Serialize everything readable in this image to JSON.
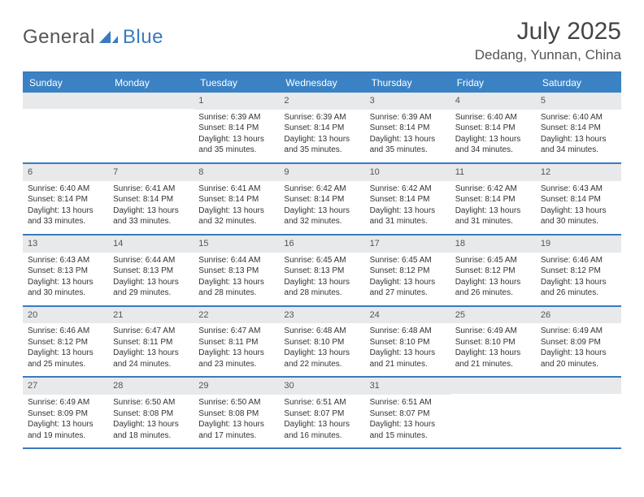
{
  "logo": {
    "text1": "General",
    "text2": "Blue"
  },
  "title": "July 2025",
  "location": "Dedang, Yunnan, China",
  "colors": {
    "header_bar": "#3b82c4",
    "accent_border": "#3a7bbf",
    "daynum_bg": "#e7e9eb",
    "text": "#333333",
    "muted": "#555555",
    "white": "#ffffff"
  },
  "weekdays": [
    "Sunday",
    "Monday",
    "Tuesday",
    "Wednesday",
    "Thursday",
    "Friday",
    "Saturday"
  ],
  "weeks": [
    [
      {
        "day": "",
        "sunrise": "",
        "sunset": "",
        "daylight": ""
      },
      {
        "day": "",
        "sunrise": "",
        "sunset": "",
        "daylight": ""
      },
      {
        "day": "1",
        "sunrise": "Sunrise: 6:39 AM",
        "sunset": "Sunset: 8:14 PM",
        "daylight": "Daylight: 13 hours and 35 minutes."
      },
      {
        "day": "2",
        "sunrise": "Sunrise: 6:39 AM",
        "sunset": "Sunset: 8:14 PM",
        "daylight": "Daylight: 13 hours and 35 minutes."
      },
      {
        "day": "3",
        "sunrise": "Sunrise: 6:39 AM",
        "sunset": "Sunset: 8:14 PM",
        "daylight": "Daylight: 13 hours and 35 minutes."
      },
      {
        "day": "4",
        "sunrise": "Sunrise: 6:40 AM",
        "sunset": "Sunset: 8:14 PM",
        "daylight": "Daylight: 13 hours and 34 minutes."
      },
      {
        "day": "5",
        "sunrise": "Sunrise: 6:40 AM",
        "sunset": "Sunset: 8:14 PM",
        "daylight": "Daylight: 13 hours and 34 minutes."
      }
    ],
    [
      {
        "day": "6",
        "sunrise": "Sunrise: 6:40 AM",
        "sunset": "Sunset: 8:14 PM",
        "daylight": "Daylight: 13 hours and 33 minutes."
      },
      {
        "day": "7",
        "sunrise": "Sunrise: 6:41 AM",
        "sunset": "Sunset: 8:14 PM",
        "daylight": "Daylight: 13 hours and 33 minutes."
      },
      {
        "day": "8",
        "sunrise": "Sunrise: 6:41 AM",
        "sunset": "Sunset: 8:14 PM",
        "daylight": "Daylight: 13 hours and 32 minutes."
      },
      {
        "day": "9",
        "sunrise": "Sunrise: 6:42 AM",
        "sunset": "Sunset: 8:14 PM",
        "daylight": "Daylight: 13 hours and 32 minutes."
      },
      {
        "day": "10",
        "sunrise": "Sunrise: 6:42 AM",
        "sunset": "Sunset: 8:14 PM",
        "daylight": "Daylight: 13 hours and 31 minutes."
      },
      {
        "day": "11",
        "sunrise": "Sunrise: 6:42 AM",
        "sunset": "Sunset: 8:14 PM",
        "daylight": "Daylight: 13 hours and 31 minutes."
      },
      {
        "day": "12",
        "sunrise": "Sunrise: 6:43 AM",
        "sunset": "Sunset: 8:14 PM",
        "daylight": "Daylight: 13 hours and 30 minutes."
      }
    ],
    [
      {
        "day": "13",
        "sunrise": "Sunrise: 6:43 AM",
        "sunset": "Sunset: 8:13 PM",
        "daylight": "Daylight: 13 hours and 30 minutes."
      },
      {
        "day": "14",
        "sunrise": "Sunrise: 6:44 AM",
        "sunset": "Sunset: 8:13 PM",
        "daylight": "Daylight: 13 hours and 29 minutes."
      },
      {
        "day": "15",
        "sunrise": "Sunrise: 6:44 AM",
        "sunset": "Sunset: 8:13 PM",
        "daylight": "Daylight: 13 hours and 28 minutes."
      },
      {
        "day": "16",
        "sunrise": "Sunrise: 6:45 AM",
        "sunset": "Sunset: 8:13 PM",
        "daylight": "Daylight: 13 hours and 28 minutes."
      },
      {
        "day": "17",
        "sunrise": "Sunrise: 6:45 AM",
        "sunset": "Sunset: 8:12 PM",
        "daylight": "Daylight: 13 hours and 27 minutes."
      },
      {
        "day": "18",
        "sunrise": "Sunrise: 6:45 AM",
        "sunset": "Sunset: 8:12 PM",
        "daylight": "Daylight: 13 hours and 26 minutes."
      },
      {
        "day": "19",
        "sunrise": "Sunrise: 6:46 AM",
        "sunset": "Sunset: 8:12 PM",
        "daylight": "Daylight: 13 hours and 26 minutes."
      }
    ],
    [
      {
        "day": "20",
        "sunrise": "Sunrise: 6:46 AM",
        "sunset": "Sunset: 8:12 PM",
        "daylight": "Daylight: 13 hours and 25 minutes."
      },
      {
        "day": "21",
        "sunrise": "Sunrise: 6:47 AM",
        "sunset": "Sunset: 8:11 PM",
        "daylight": "Daylight: 13 hours and 24 minutes."
      },
      {
        "day": "22",
        "sunrise": "Sunrise: 6:47 AM",
        "sunset": "Sunset: 8:11 PM",
        "daylight": "Daylight: 13 hours and 23 minutes."
      },
      {
        "day": "23",
        "sunrise": "Sunrise: 6:48 AM",
        "sunset": "Sunset: 8:10 PM",
        "daylight": "Daylight: 13 hours and 22 minutes."
      },
      {
        "day": "24",
        "sunrise": "Sunrise: 6:48 AM",
        "sunset": "Sunset: 8:10 PM",
        "daylight": "Daylight: 13 hours and 21 minutes."
      },
      {
        "day": "25",
        "sunrise": "Sunrise: 6:49 AM",
        "sunset": "Sunset: 8:10 PM",
        "daylight": "Daylight: 13 hours and 21 minutes."
      },
      {
        "day": "26",
        "sunrise": "Sunrise: 6:49 AM",
        "sunset": "Sunset: 8:09 PM",
        "daylight": "Daylight: 13 hours and 20 minutes."
      }
    ],
    [
      {
        "day": "27",
        "sunrise": "Sunrise: 6:49 AM",
        "sunset": "Sunset: 8:09 PM",
        "daylight": "Daylight: 13 hours and 19 minutes."
      },
      {
        "day": "28",
        "sunrise": "Sunrise: 6:50 AM",
        "sunset": "Sunset: 8:08 PM",
        "daylight": "Daylight: 13 hours and 18 minutes."
      },
      {
        "day": "29",
        "sunrise": "Sunrise: 6:50 AM",
        "sunset": "Sunset: 8:08 PM",
        "daylight": "Daylight: 13 hours and 17 minutes."
      },
      {
        "day": "30",
        "sunrise": "Sunrise: 6:51 AM",
        "sunset": "Sunset: 8:07 PM",
        "daylight": "Daylight: 13 hours and 16 minutes."
      },
      {
        "day": "31",
        "sunrise": "Sunrise: 6:51 AM",
        "sunset": "Sunset: 8:07 PM",
        "daylight": "Daylight: 13 hours and 15 minutes."
      },
      {
        "day": "",
        "sunrise": "",
        "sunset": "",
        "daylight": ""
      },
      {
        "day": "",
        "sunrise": "",
        "sunset": "",
        "daylight": ""
      }
    ]
  ]
}
